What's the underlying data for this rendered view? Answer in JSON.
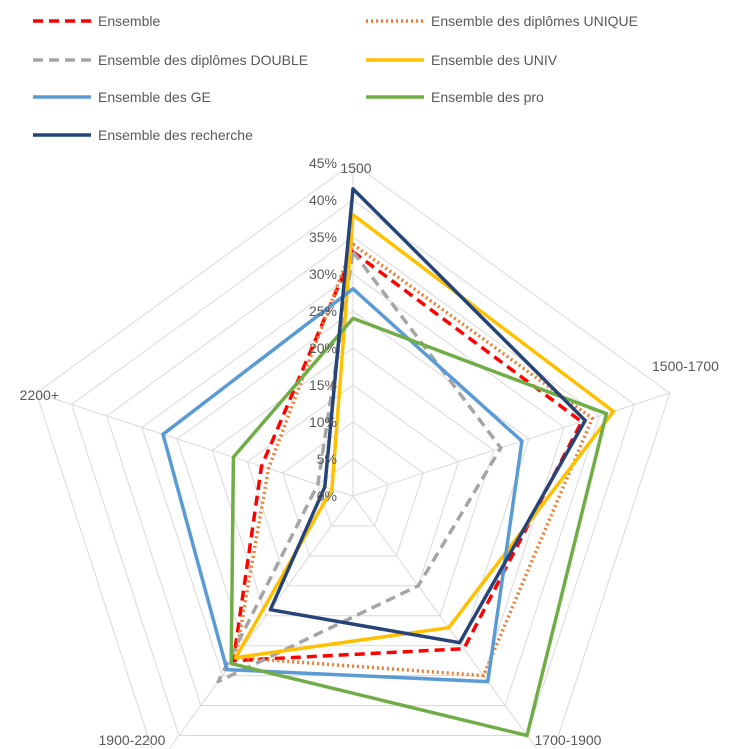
{
  "chart_data": {
    "type": "radar",
    "categories": [
      "1500",
      "1500-1700",
      "1700-1900",
      "1900-2200",
      "2200+"
    ],
    "r_ticks": [
      "0%",
      "5%",
      "10%",
      "15%",
      "20%",
      "25%",
      "30%",
      "35%",
      "40%",
      "45%"
    ],
    "r_range": [
      0,
      0.45
    ],
    "grid": true,
    "legend_position": "top",
    "series": [
      {
        "name": "Ensemble",
        "values": [
          0.33,
          0.325,
          0.255,
          0.275,
          0.13
        ],
        "color": "#FF0000",
        "dash": "dashed"
      },
      {
        "name": "Ensemble des diplômes UNIQUE",
        "values": [
          0.34,
          0.34,
          0.3,
          0.27,
          0.12
        ],
        "color": "#ED7D31",
        "dash": "dotted"
      },
      {
        "name": "Ensemble des diplômes DOUBLE",
        "values": [
          0.33,
          0.21,
          0.15,
          0.31,
          0.05
        ],
        "color": "#A5A5A5",
        "dash": "dashed"
      },
      {
        "name": "Ensemble des UNIV",
        "values": [
          0.38,
          0.37,
          0.22,
          0.27,
          0.03
        ],
        "color": "#FFC000",
        "dash": "solid"
      },
      {
        "name": "Ensemble des GE",
        "values": [
          0.28,
          0.24,
          0.31,
          0.29,
          0.27
        ],
        "color": "#5B9BD5",
        "dash": "solid"
      },
      {
        "name": "Ensemble des pro",
        "values": [
          0.24,
          0.36,
          0.4,
          0.28,
          0.17
        ],
        "color": "#70AD47",
        "dash": "solid"
      },
      {
        "name": "Ensemble des recherche",
        "values": [
          0.415,
          0.33,
          0.245,
          0.19,
          0.04
        ],
        "color": "#264478",
        "dash": "solid"
      }
    ]
  }
}
